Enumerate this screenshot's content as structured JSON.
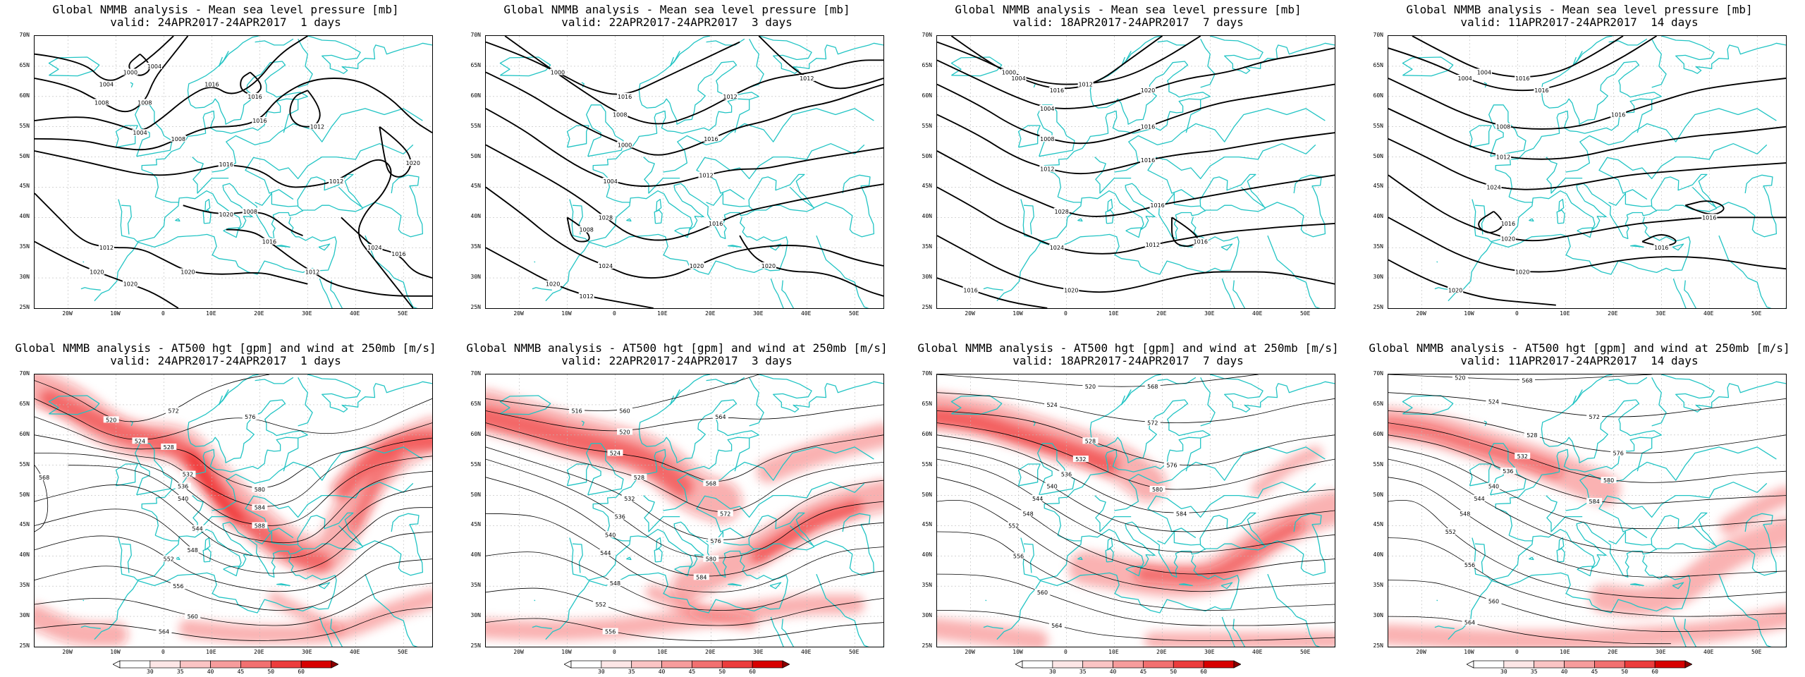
{
  "panels": [
    {
      "title1": "Global NMMB analysis - Mean sea level pressure [mb]",
      "title2": "valid: 24APR2017-24APR2017  1 days"
    },
    {
      "title1": "Global NMMB analysis - Mean sea level pressure [mb]",
      "title2": "valid: 22APR2017-24APR2017  3 days"
    },
    {
      "title1": "Global NMMB analysis - Mean sea level pressure [mb]",
      "title2": "valid: 18APR2017-24APR2017  7 days"
    },
    {
      "title1": "Global NMMB analysis - Mean sea level pressure [mb]",
      "title2": "valid: 11APR2017-24APR2017  14 days"
    },
    {
      "title1": "Global NMMB analysis - AT500 hgt [gpm] and wind at 250mb [m/s]",
      "title2": "valid: 24APR2017-24APR2017  1 days"
    },
    {
      "title1": "Global NMMB analysis - AT500 hgt [gpm] and wind at 250mb [m/s]",
      "title2": "valid: 22APR2017-24APR2017  3 days"
    },
    {
      "title1": "Global NMMB analysis - AT500 hgt [gpm] and wind at 250mb [m/s]",
      "title2": "valid: 18APR2017-24APR2017  7 days"
    },
    {
      "title1": "Global NMMB analysis - AT500 hgt [gpm] and wind at 250mb [m/s]",
      "title2": "valid: 11APR2017-24APR2017  14 days"
    }
  ],
  "lat_labels": [
    "70N",
    "65N",
    "60N",
    "55N",
    "50N",
    "45N",
    "40N",
    "35N",
    "30N",
    "25N"
  ],
  "lon_labels": [
    "20W",
    "10W",
    "0",
    "10E",
    "20E",
    "30E",
    "40E",
    "50E"
  ],
  "colorbar": {
    "labels": [
      "30",
      "35",
      "40",
      "45",
      "50",
      "60"
    ]
  },
  "colors": {
    "coastline": "#22c4c4",
    "contour": "#000000",
    "wind_shade": "#ee1111"
  },
  "mslp_labels": [
    [
      "1004",
      "1008",
      "1004",
      "1008",
      "1016",
      "1012",
      "1020",
      "1020",
      "1016",
      "1024",
      "1020",
      "1012",
      "1016",
      "1004",
      "1000",
      "1008",
      "1016",
      "1016",
      "1012",
      "1020",
      "1020",
      "1008",
      "1012",
      "1016"
    ],
    [
      "1000",
      "1000",
      "1008",
      "1004",
      "1028",
      "1024",
      "1020",
      "1008",
      "1012",
      "1020",
      "1016",
      "1016",
      "1012",
      "1012",
      "1016",
      "1020",
      "1012"
    ],
    [
      "1000",
      "1004",
      "1004",
      "1008",
      "1012",
      "1028",
      "1024",
      "1020",
      "1016",
      "1016",
      "1012",
      "1020",
      "1016",
      "1016",
      "1016",
      "1016",
      "1012"
    ],
    [
      "1004",
      "1004",
      "1008",
      "1012",
      "1024",
      "1020",
      "1020",
      "1020",
      "1016",
      "1016",
      "1016",
      "1016",
      "1016",
      "1016"
    ]
  ],
  "z500_labels": [
    [
      "520",
      "524",
      "528",
      "532",
      "536",
      "540",
      "544",
      "548",
      "552",
      "556",
      "560",
      "564",
      "568",
      "572",
      "576",
      "580",
      "584",
      "588"
    ],
    [
      "516",
      "520",
      "524",
      "528",
      "532",
      "536",
      "540",
      "544",
      "548",
      "552",
      "556",
      "560",
      "564",
      "568",
      "572",
      "576",
      "580",
      "584"
    ],
    [
      "520",
      "524",
      "528",
      "532",
      "536",
      "540",
      "544",
      "548",
      "552",
      "556",
      "560",
      "564",
      "568",
      "572",
      "576",
      "580",
      "584"
    ],
    [
      "520",
      "524",
      "528",
      "532",
      "536",
      "540",
      "544",
      "548",
      "552",
      "556",
      "560",
      "564",
      "568",
      "572",
      "576",
      "580",
      "584"
    ]
  ]
}
